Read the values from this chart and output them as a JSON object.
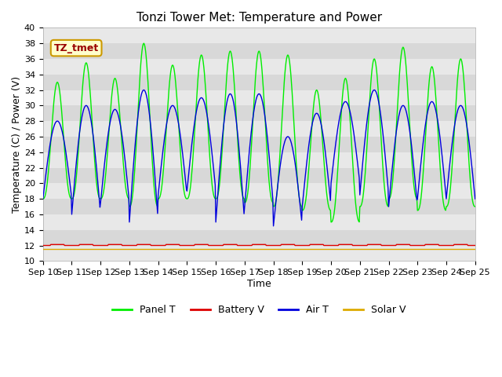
{
  "title": "Tonzi Tower Met: Temperature and Power",
  "xlabel": "Time",
  "ylabel": "Temperature (C) / Power (V)",
  "ylim": [
    10,
    40
  ],
  "annotation_text": "TZ_tmet",
  "x_start_day": 10,
  "x_end_day": 25,
  "x_ticks": [
    10,
    11,
    12,
    13,
    14,
    15,
    16,
    17,
    18,
    19,
    20,
    21,
    22,
    23,
    24,
    25
  ],
  "x_tick_labels": [
    "Sep 10",
    "Sep 11",
    "Sep 12",
    "Sep 13",
    "Sep 14",
    "Sep 15",
    "Sep 16",
    "Sep 17",
    "Sep 18",
    "Sep 19",
    "Sep 20",
    "Sep 21",
    "Sep 22",
    "Sep 23",
    "Sep 24",
    "Sep 25"
  ],
  "yticks": [
    10,
    12,
    14,
    16,
    18,
    20,
    22,
    24,
    26,
    28,
    30,
    32,
    34,
    36,
    38,
    40
  ],
  "panel_color": "#00ee00",
  "battery_color": "#dd0000",
  "air_color": "#0000dd",
  "solar_color": "#ddaa00",
  "figure_bg": "#ffffff",
  "plot_bg_light": "#eeeeee",
  "plot_bg_dark": "#dddddd",
  "title_fontsize": 11,
  "axis_label_fontsize": 9,
  "tick_fontsize": 8,
  "legend_fontsize": 9,
  "panel_T_peaks": [
    33.0,
    35.5,
    33.5,
    38.0,
    35.2,
    36.5,
    37.0,
    37.0,
    36.5,
    32.0,
    33.5,
    36.0,
    37.5,
    35.0,
    36.0
  ],
  "panel_T_mins": [
    18.0,
    18.0,
    18.0,
    17.0,
    18.0,
    18.0,
    18.0,
    17.5,
    17.0,
    16.5,
    15.0,
    17.0,
    18.0,
    16.5,
    17.0
  ],
  "air_T_peaks": [
    28.0,
    30.0,
    29.5,
    32.0,
    30.0,
    31.0,
    31.5,
    31.5,
    26.0,
    29.0,
    30.5,
    32.0,
    30.0,
    30.5,
    30.0
  ],
  "air_T_mins": [
    18.0,
    16.0,
    17.5,
    15.0,
    18.5,
    19.0,
    15.0,
    17.0,
    14.5,
    17.0,
    20.0,
    18.5,
    17.0,
    18.0,
    18.0
  ],
  "battery_level": 12.0,
  "solar_level": 11.55,
  "n_points_per_day": 48,
  "stripe_colors": [
    "#e8e8e8",
    "#d8d8d8"
  ]
}
